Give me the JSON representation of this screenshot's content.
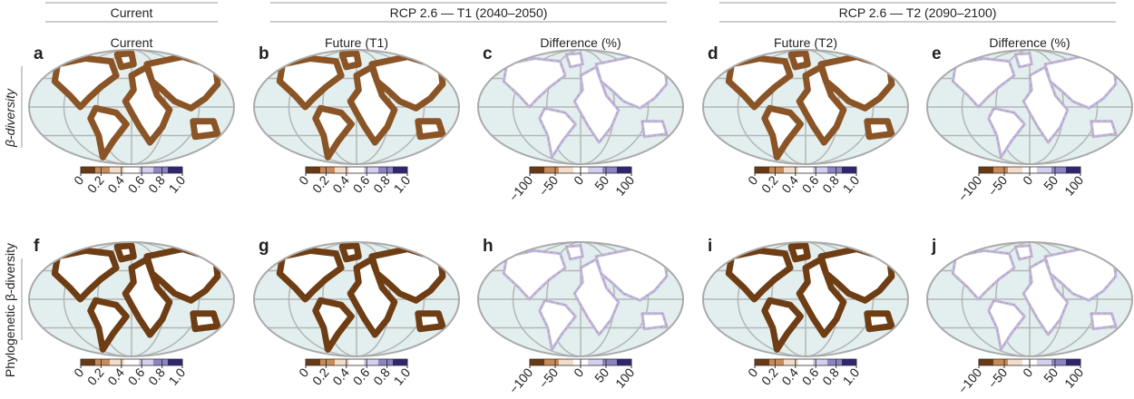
{
  "column_headers": [
    "Current",
    "RCP 2.6 — T1 (2040–2050)",
    "RCP 2.6 — T2 (2090–2100)"
  ],
  "columns": [
    {
      "title": "Current",
      "scale": "beta"
    },
    {
      "title": "Future (T1)",
      "scale": "beta"
    },
    {
      "title": "Difference (%)",
      "scale": "difference"
    },
    {
      "title": "Future (T2)",
      "scale": "beta"
    },
    {
      "title": "Difference (%)",
      "scale": "difference"
    }
  ],
  "rows": [
    {
      "label": "β-diversity",
      "letters": [
        "a",
        "b",
        "c",
        "d",
        "e"
      ]
    },
    {
      "label": "Phylogenetic β-diversity",
      "letters": [
        "f",
        "g",
        "h",
        "i",
        "j"
      ]
    }
  ],
  "colorbars": {
    "beta": {
      "range": [
        0,
        1
      ],
      "ticks": [
        0,
        0.2,
        0.4,
        0.6,
        0.8,
        {
          "value": 1,
          "label": "1.0"
        }
      ],
      "colors": [
        "#6b3a12",
        "#c98a55",
        "#f3dcc8",
        "#ffffff",
        "#d3cfec",
        "#8a84c4",
        "#2e2670"
      ]
    },
    "difference": {
      "range": [
        -100,
        100
      ],
      "ticks": [
        {
          "value": -100,
          "label": "−100"
        },
        {
          "value": -50,
          "label": "−50"
        },
        0,
        50,
        100
      ],
      "colors": [
        "#6b3a12",
        "#c98a55",
        "#f3dcc8",
        "#ffffff",
        "#d3cfec",
        "#8a84c4",
        "#2e2670"
      ]
    }
  }
}
